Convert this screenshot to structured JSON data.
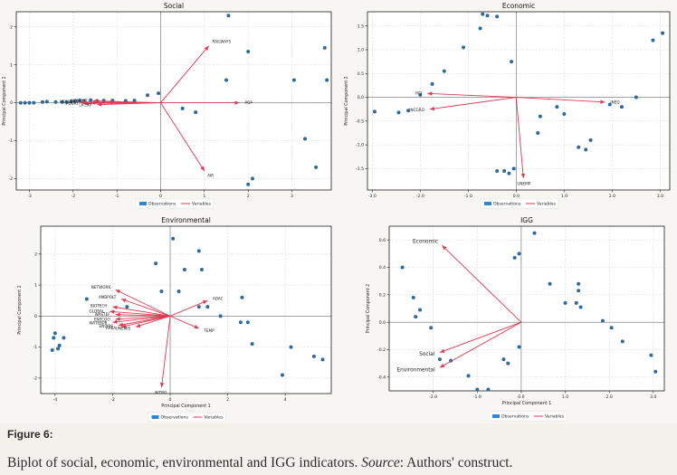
{
  "figure": {
    "label": "Figure 6:",
    "caption_main": "Biplot of social, economic, environmental and IGG indicators. ",
    "caption_source_label": "Source",
    "caption_source_text": ": Authors' construct."
  },
  "colors": {
    "observation": "#2f6a9c",
    "variable": "#e03a52",
    "legend_obs_swatch": "#2f86d6",
    "axis": "#000000",
    "grid": "#d4d4d4",
    "panel_bg": "#ffffff"
  },
  "chart_data": [
    {
      "id": "social",
      "type": "scatter",
      "title": "Social",
      "xlabel": "Principal Component 1",
      "ylabel": "Principal Component 2",
      "xlim": [
        -3.3,
        3.9
      ],
      "ylim": [
        -2.3,
        2.4
      ],
      "xticks": [
        -3,
        -2,
        -1,
        0,
        1,
        2,
        3
      ],
      "yticks": [
        -2,
        -1,
        0,
        1,
        2
      ],
      "grid": true,
      "legend": {
        "position": "bottom-center",
        "entries": [
          "Observations",
          "Variables"
        ]
      },
      "observations": [
        [
          -3.2,
          0.0
        ],
        [
          -3.1,
          0.0
        ],
        [
          -3.0,
          0.0
        ],
        [
          -2.9,
          0.0
        ],
        [
          -2.7,
          0.02
        ],
        [
          -2.6,
          0.03
        ],
        [
          -2.4,
          0.02
        ],
        [
          -2.25,
          0.02
        ],
        [
          -2.15,
          0.02
        ],
        [
          -2.05,
          0.03
        ],
        [
          -1.95,
          0.05
        ],
        [
          -1.85,
          0.06
        ],
        [
          -1.75,
          0.05
        ],
        [
          -1.6,
          0.07
        ],
        [
          -1.45,
          0.05
        ],
        [
          -1.3,
          0.06
        ],
        [
          -1.1,
          0.06
        ],
        [
          -0.8,
          0.05
        ],
        [
          -0.6,
          0.06
        ],
        [
          -0.3,
          0.2
        ],
        [
          -0.05,
          0.25
        ],
        [
          0.5,
          -0.15
        ],
        [
          0.8,
          -0.25
        ],
        [
          1.55,
          2.3
        ],
        [
          1.5,
          0.6
        ],
        [
          2.0,
          1.35
        ],
        [
          2.1,
          -2.0
        ],
        [
          2.0,
          -2.15
        ],
        [
          3.05,
          0.6
        ],
        [
          3.3,
          -0.95
        ],
        [
          3.55,
          -1.7
        ],
        [
          3.75,
          1.45
        ],
        [
          3.8,
          0.6
        ]
      ],
      "variables": [
        {
          "name": "RAILWAYS",
          "x": 1.1,
          "y": 1.5
        },
        {
          "name": "POP",
          "x": 1.8,
          "y": 0.0
        },
        {
          "name": "AIR",
          "x": 1.0,
          "y": -1.8
        },
        {
          "name": "INFMORT",
          "x": -1.55,
          "y": 0.05
        },
        {
          "name": "HEALTH",
          "x": -1.85,
          "y": 0.02
        },
        {
          "name": "POVRT",
          "x": -1.75,
          "y": -0.02
        },
        {
          "name": "LIFEXP",
          "x": -1.45,
          "y": -0.05
        },
        {
          "name": "",
          "x": -1.6,
          "y": 0.0
        },
        {
          "name": "",
          "x": -1.2,
          "y": 0.0
        }
      ]
    },
    {
      "id": "economic",
      "type": "scatter",
      "title": "Economic",
      "xlabel": "Principal Component 1",
      "ylabel": "Principal Component 2",
      "xlim": [
        -3.1,
        3.2
      ],
      "ylim": [
        -1.95,
        1.8
      ],
      "xticks": [
        -3,
        -2,
        -1,
        0,
        1,
        2,
        3
      ],
      "yticks": [
        -1.5,
        -1.0,
        -0.5,
        0.0,
        0.5,
        1.0,
        1.5
      ],
      "grid": true,
      "legend": {
        "position": "bottom-center",
        "entries": [
          "Observations",
          "Variables"
        ]
      },
      "observations": [
        [
          -2.95,
          -0.3
        ],
        [
          -2.45,
          -0.32
        ],
        [
          -2.25,
          -0.28
        ],
        [
          -2.0,
          0.05
        ],
        [
          -1.75,
          0.28
        ],
        [
          -1.5,
          0.55
        ],
        [
          -1.1,
          1.05
        ],
        [
          -0.75,
          1.45
        ],
        [
          -0.7,
          1.75
        ],
        [
          -0.6,
          1.72
        ],
        [
          -0.4,
          1.7
        ],
        [
          -0.1,
          0.75
        ],
        [
          -0.25,
          -1.55
        ],
        [
          -0.15,
          -1.6
        ],
        [
          -0.05,
          -1.5
        ],
        [
          -0.4,
          -1.55
        ],
        [
          0.85,
          -0.2
        ],
        [
          1.0,
          -0.35
        ],
        [
          0.5,
          -0.4
        ],
        [
          0.45,
          -0.75
        ],
        [
          1.3,
          -1.05
        ],
        [
          1.45,
          -1.1
        ],
        [
          1.55,
          -0.9
        ],
        [
          1.95,
          -0.15
        ],
        [
          2.2,
          -0.2
        ],
        [
          2.5,
          0.0
        ],
        [
          2.85,
          1.2
        ],
        [
          3.05,
          1.35
        ]
      ],
      "variables": [
        {
          "name": "HCI",
          "x": -1.85,
          "y": 0.08
        },
        {
          "name": "INCGRO",
          "x": -1.8,
          "y": -0.25
        },
        {
          "name": "UNEMP",
          "x": 0.15,
          "y": -1.7
        },
        {
          "name": "INEQ",
          "x": 1.85,
          "y": -0.1
        }
      ]
    },
    {
      "id": "environmental",
      "type": "scatter",
      "title": "Environmental",
      "xlabel": "Principal Component 1",
      "ylabel": "Principal Component 2",
      "xlim": [
        -4.5,
        5.6
      ],
      "ylim": [
        -2.5,
        2.9
      ],
      "xticks": [
        -4,
        -2,
        0,
        2,
        4
      ],
      "yticks": [
        -2,
        -1,
        0,
        1,
        2
      ],
      "grid": true,
      "legend": {
        "position": "bottom-center",
        "entries": [
          "Observations",
          "Variables"
        ]
      },
      "observations": [
        [
          -4.1,
          -1.1
        ],
        [
          -4.0,
          -0.55
        ],
        [
          -4.05,
          -0.7
        ],
        [
          -3.85,
          -0.95
        ],
        [
          -3.7,
          -0.7
        ],
        [
          -3.9,
          -1.05
        ],
        [
          -2.9,
          0.55
        ],
        [
          -1.5,
          0.3
        ],
        [
          -0.5,
          1.7
        ],
        [
          -0.3,
          0.8
        ],
        [
          0.1,
          2.5
        ],
        [
          0.5,
          1.5
        ],
        [
          1.0,
          2.1
        ],
        [
          1.1,
          1.5
        ],
        [
          1.3,
          0.3
        ],
        [
          1.75,
          0.0
        ],
        [
          2.5,
          0.6
        ],
        [
          2.45,
          -0.2
        ],
        [
          2.7,
          -0.2
        ],
        [
          2.85,
          -0.9
        ],
        [
          3.9,
          -1.9
        ],
        [
          4.2,
          -1.0
        ],
        [
          5.0,
          -1.3
        ],
        [
          5.3,
          -1.4
        ],
        [
          1.0,
          0.3
        ],
        [
          0.3,
          0.8
        ]
      ],
      "variables": [
        {
          "name": "NETWORK",
          "x": -1.9,
          "y": 0.85
        },
        {
          "name": "AMBPOLT",
          "x": -1.7,
          "y": 0.55
        },
        {
          "name": "BIOTECH",
          "x": -2.0,
          "y": 0.3
        },
        {
          "name": "GLOBAL",
          "x": -2.1,
          "y": 0.15
        },
        {
          "name": "WASTEF",
          "x": -1.9,
          "y": 0.05
        },
        {
          "name": "ENECOO",
          "x": -1.9,
          "y": -0.1
        },
        {
          "name": "WATERPB",
          "x": -2.0,
          "y": -0.2
        },
        {
          "name": "ENVIRS",
          "x": -1.8,
          "y": -0.3
        },
        {
          "name": "AREA",
          "x": -1.7,
          "y": -0.35
        },
        {
          "name": "UNEMIS",
          "x": -1.2,
          "y": -0.35
        },
        {
          "name": "NITRO",
          "x": -0.3,
          "y": -2.3
        },
        {
          "name": "ADAC",
          "x": 1.3,
          "y": 0.5
        },
        {
          "name": "TEMP",
          "x": 1.0,
          "y": -0.4
        }
      ]
    },
    {
      "id": "igg",
      "type": "scatter",
      "title": "IGG",
      "xlabel": "Principal Component 1",
      "ylabel": "Principal Component 2",
      "xlim": [
        -3.0,
        3.25
      ],
      "ylim": [
        -0.5,
        0.7
      ],
      "xticks": [
        -2,
        -1,
        0,
        1,
        2,
        3
      ],
      "yticks": [
        -0.4,
        -0.2,
        0.0,
        0.2,
        0.4,
        0.6
      ],
      "grid": true,
      "legend": {
        "position": "bottom-center",
        "entries": [
          "Observations",
          "Variables"
        ]
      },
      "observations": [
        [
          -2.7,
          0.4
        ],
        [
          -2.45,
          0.18
        ],
        [
          -2.4,
          0.04
        ],
        [
          -2.3,
          0.09
        ],
        [
          -2.05,
          -0.04
        ],
        [
          -1.85,
          -0.27
        ],
        [
          -1.6,
          -0.28
        ],
        [
          -1.2,
          -0.39
        ],
        [
          -1.0,
          -0.49
        ],
        [
          -0.75,
          -0.49
        ],
        [
          -0.4,
          -0.27
        ],
        [
          -0.3,
          -0.3
        ],
        [
          -0.15,
          0.47
        ],
        [
          -0.05,
          0.5
        ],
        [
          -0.05,
          -0.18
        ],
        [
          0.3,
          0.65
        ],
        [
          0.65,
          0.28
        ],
        [
          1.0,
          0.14
        ],
        [
          1.3,
          0.28
        ],
        [
          1.3,
          0.23
        ],
        [
          1.25,
          0.14
        ],
        [
          1.35,
          0.11
        ],
        [
          1.85,
          0.01
        ],
        [
          2.05,
          -0.04
        ],
        [
          2.3,
          -0.14
        ],
        [
          2.95,
          -0.24
        ],
        [
          3.05,
          -0.36
        ]
      ],
      "variables": [
        {
          "name": "Economic",
          "x": -1.8,
          "y": 0.56
        },
        {
          "name": "Social",
          "x": -1.85,
          "y": -0.22
        },
        {
          "name": "Environmental",
          "x": -1.85,
          "y": -0.33
        }
      ]
    }
  ]
}
